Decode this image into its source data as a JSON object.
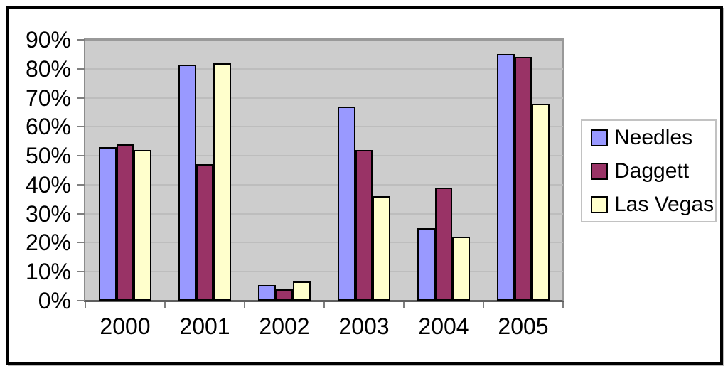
{
  "chart_data": {
    "type": "bar",
    "title": "",
    "xlabel": "",
    "ylabel": "",
    "categories": [
      "2000",
      "2001",
      "2002",
      "2003",
      "2004",
      "2005"
    ],
    "series": [
      {
        "name": "Needles",
        "color": "#9999FF",
        "values": [
          53,
          81.5,
          5.5,
          67,
          25,
          85
        ]
      },
      {
        "name": "Daggett",
        "color": "#993366",
        "values": [
          54,
          47,
          4,
          52,
          39,
          84
        ]
      },
      {
        "name": "Las Vegas",
        "color": "#FFFFCC",
        "values": [
          52,
          82,
          6.5,
          36,
          22,
          68
        ]
      }
    ],
    "ylim": [
      0,
      90
    ],
    "y_ticks": [
      {
        "label": "90%",
        "value": 90
      },
      {
        "label": "80%",
        "value": 80
      },
      {
        "label": "70%",
        "value": 70
      },
      {
        "label": "60%",
        "value": 60
      },
      {
        "label": "50%",
        "value": 50
      },
      {
        "label": "40%",
        "value": 40
      },
      {
        "label": "30%",
        "value": 30
      },
      {
        "label": "20%",
        "value": 20
      },
      {
        "label": "10%",
        "value": 10
      },
      {
        "label": "0%",
        "value": 0
      }
    ],
    "grid": true,
    "legend_position": "right"
  },
  "colors": {
    "plot_background": "#CDCDCD",
    "gridline": "#BDBDBD",
    "tick": "#7F7F7F",
    "legend_background": "#FFFFFF",
    "frame_border": "#000000"
  }
}
